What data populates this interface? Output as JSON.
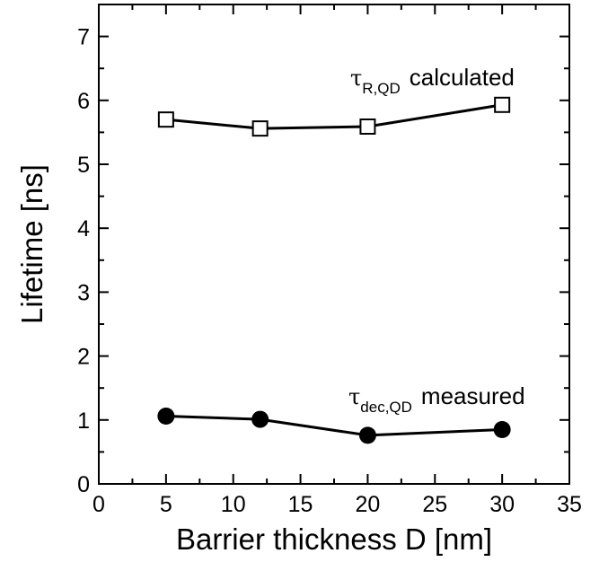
{
  "chart_data": {
    "type": "line",
    "title": "",
    "xlabel": "Barrier thickness D [nm]",
    "ylabel": "Lifetime [ns]",
    "xlim": [
      0,
      35
    ],
    "ylim": [
      0,
      7.5
    ],
    "x_ticks": [
      0,
      5,
      10,
      15,
      20,
      25,
      30,
      35
    ],
    "y_ticks": [
      0,
      1,
      2,
      3,
      4,
      5,
      6,
      7
    ],
    "grid": false,
    "series": [
      {
        "marker": "open-square",
        "color": "#000000",
        "x": [
          5,
          12,
          20,
          30
        ],
        "y": [
          5.7,
          5.56,
          5.59,
          5.93
        ],
        "annotation": {
          "symbol": "τ",
          "subscript": "R,QD",
          "text": "calculated"
        }
      },
      {
        "marker": "filled-circle",
        "color": "#000000",
        "x": [
          5,
          12,
          20,
          30
        ],
        "y": [
          1.06,
          1.01,
          0.76,
          0.85
        ],
        "annotation": {
          "symbol": "τ",
          "subscript": "dec,QD",
          "text": "measured"
        }
      }
    ]
  }
}
